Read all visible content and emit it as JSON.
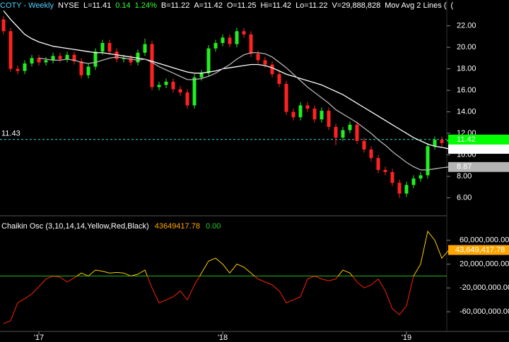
{
  "chart_data": {
    "type": "candlestick",
    "header": [
      "COTY - Weekly",
      "NYSE",
      "L=11.41",
      "0.14",
      "1.24%",
      "B=11.22",
      "A=11.42",
      "O=11.25",
      "Hi=11.42",
      "Lo=11.22",
      "V=29,888,828",
      "Mov Avg 2 Lines (",
      "("
    ],
    "header_colors": [
      "#4fd0ff",
      "#ffffff",
      "#ffffff",
      "#33ff33",
      "#33ff33",
      "#ffffff",
      "#ffffff",
      "#ffffff",
      "#ffffff",
      "#ffffff",
      "#ffffff",
      "#ffffff",
      "#ffffff"
    ],
    "categories": [
      null,
      null,
      null,
      null,
      null,
      "'17",
      null,
      null,
      null,
      null,
      null,
      null,
      null,
      null,
      null,
      null,
      null,
      null,
      null,
      null,
      null,
      null,
      null,
      null,
      null,
      null,
      null,
      null,
      null,
      null,
      null,
      "'18",
      null,
      null,
      null,
      null,
      null,
      null,
      null,
      null,
      null,
      null,
      null,
      null,
      null,
      null,
      null,
      null,
      null,
      null,
      null,
      null,
      null,
      null,
      null,
      null,
      null,
      "'19",
      null,
      null,
      null,
      null,
      null,
      null
    ],
    "open": [
      22.6,
      21.5,
      18.0,
      17.8,
      18.5,
      19.0,
      18.6,
      18.8,
      19.2,
      18.9,
      19.3,
      18.7,
      17.4,
      18.2,
      19.6,
      20.4,
      19.6,
      18.9,
      19.0,
      18.6,
      19.5,
      20.3,
      16.3,
      16.5,
      16.8,
      16.1,
      15.8,
      14.6,
      17.2,
      17.6,
      19.9,
      20.4,
      20.9,
      20.3,
      21.5,
      21.2,
      19.4,
      18.8,
      18.4,
      17.5,
      16.6,
      14.0,
      13.5,
      14.6,
      14.3,
      13.3,
      14.1,
      12.6,
      11.6,
      12.3,
      12.8,
      11.3,
      10.5,
      9.7,
      8.6,
      8.4,
      7.4,
      6.4,
      7.2,
      7.8,
      8.1,
      10.8,
      11.4,
      11.25
    ],
    "high": [
      22.9,
      21.8,
      18.3,
      18.8,
      19.3,
      19.3,
      19.1,
      19.5,
      19.5,
      19.6,
      19.6,
      19.0,
      18.5,
      19.9,
      20.7,
      20.7,
      19.9,
      19.3,
      19.3,
      19.8,
      20.8,
      20.6,
      16.8,
      17.1,
      17.1,
      16.4,
      16.1,
      17.5,
      17.9,
      20.2,
      20.7,
      21.2,
      21.2,
      21.8,
      21.8,
      21.5,
      19.7,
      19.1,
      18.7,
      17.8,
      16.9,
      14.3,
      14.9,
      14.9,
      14.6,
      14.4,
      14.4,
      12.9,
      12.6,
      13.1,
      13.1,
      11.6,
      10.8,
      10.0,
      8.9,
      8.7,
      7.7,
      7.5,
      8.1,
      8.4,
      11.1,
      11.7,
      11.7,
      11.42
    ],
    "low": [
      21.2,
      17.7,
      17.5,
      17.5,
      18.2,
      18.3,
      18.3,
      18.5,
      18.6,
      18.6,
      18.4,
      17.1,
      17.1,
      17.9,
      19.3,
      19.3,
      18.6,
      18.6,
      18.3,
      18.3,
      19.2,
      16.0,
      16.0,
      16.2,
      15.8,
      15.5,
      14.3,
      14.3,
      16.9,
      17.3,
      19.6,
      20.1,
      20.0,
      20.0,
      20.9,
      19.1,
      18.5,
      18.1,
      17.2,
      16.3,
      13.7,
      13.2,
      13.2,
      14.0,
      13.0,
      13.0,
      12.3,
      10.9,
      11.3,
      12.0,
      11.0,
      10.2,
      9.4,
      8.3,
      8.1,
      7.1,
      6.0,
      6.1,
      6.9,
      7.5,
      7.8,
      10.5,
      10.8,
      11.22
    ],
    "close": [
      21.5,
      18.0,
      17.8,
      18.5,
      19.0,
      18.6,
      18.8,
      19.2,
      18.9,
      19.3,
      18.7,
      17.4,
      18.2,
      19.6,
      20.4,
      19.6,
      18.9,
      19.0,
      18.6,
      19.5,
      20.3,
      16.3,
      16.5,
      16.8,
      16.1,
      15.8,
      14.6,
      17.2,
      17.6,
      19.9,
      20.4,
      20.9,
      20.3,
      21.5,
      21.2,
      19.4,
      18.8,
      18.4,
      17.5,
      16.6,
      14.0,
      13.5,
      14.6,
      14.3,
      13.3,
      14.1,
      12.6,
      11.6,
      12.3,
      12.8,
      11.3,
      10.5,
      9.7,
      8.6,
      8.4,
      7.4,
      6.4,
      7.2,
      7.8,
      8.1,
      10.8,
      11.4,
      11.1,
      11.41
    ],
    "up_color": "#22ee22",
    "down_color": "#ff2222",
    "series": [
      {
        "color": "#ffffff",
        "values": [
          23.4,
          22.6,
          21.9,
          21.2,
          20.8,
          20.5,
          20.3,
          20.1,
          20.0,
          19.9,
          19.8,
          19.7,
          19.6,
          19.5,
          19.5,
          19.4,
          19.3,
          19.2,
          19.1,
          19.0,
          18.9,
          18.7,
          18.5,
          18.3,
          18.1,
          17.9,
          17.7,
          17.6,
          17.6,
          17.7,
          17.8,
          18.0,
          18.1,
          18.2,
          18.3,
          18.4,
          18.4,
          18.3,
          18.1,
          17.8,
          17.5,
          17.3,
          17.1,
          16.9,
          16.7,
          16.5,
          16.2,
          15.9,
          15.6,
          15.2,
          14.8,
          14.4,
          14.0,
          13.6,
          13.2,
          12.8,
          12.4,
          12.0,
          11.6,
          11.3,
          11.0,
          10.8,
          10.7,
          10.56
        ]
      },
      {
        "color": "#b4b4b4",
        "values": [
          null,
          null,
          null,
          null,
          null,
          19.0,
          18.9,
          18.8,
          18.8,
          18.9,
          18.8,
          18.6,
          18.5,
          18.6,
          18.8,
          19.0,
          19.1,
          19.0,
          18.9,
          18.8,
          18.9,
          18.6,
          18.2,
          17.9,
          17.6,
          17.3,
          17.0,
          17.0,
          17.1,
          17.3,
          17.6,
          18.0,
          18.4,
          18.9,
          19.3,
          19.5,
          19.5,
          19.4,
          19.1,
          18.6,
          18.1,
          17.5,
          16.9,
          16.3,
          15.8,
          15.3,
          14.8,
          14.2,
          13.8,
          13.4,
          13.0,
          12.5,
          12.0,
          11.4,
          10.9,
          10.3,
          9.8,
          9.3,
          8.9,
          8.6,
          8.6,
          8.7,
          8.8,
          8.87
        ]
      }
    ],
    "ask_price": 11.42,
    "ask_color": "#00ff00",
    "cursor_price": 11.43,
    "cursor_color": "#33dddd",
    "ylim": [
      4.4,
      24.4
    ],
    "yticks": [
      {
        "value": 6,
        "label": "6.00"
      },
      {
        "value": 8,
        "label": "8.00"
      },
      {
        "value": 10,
        "label": "10.00"
      },
      {
        "value": 12,
        "label": "12.00"
      },
      {
        "value": 14,
        "label": "14.00"
      },
      {
        "value": 16,
        "label": "16.00"
      },
      {
        "value": 18,
        "label": "18.00"
      },
      {
        "value": 20,
        "label": "20.00"
      },
      {
        "value": 22,
        "label": "22.00"
      }
    ],
    "indicator": {
      "title": "Chaikin Osc (3,10,14,14,Yellow,Red,Black)",
      "signal": {
        "value": 0,
        "label": "0.00"
      },
      "signal_color": "#22bb22",
      "color_above": "#ffcc00",
      "color_below": "#ff2200",
      "label_bg": "#ffa500",
      "values": [
        -80000000,
        -75000000,
        -45000000,
        -38000000,
        -30000000,
        -18000000,
        -5000000,
        0,
        -2000000,
        -10000000,
        -3000000,
        5000000,
        0,
        10000000,
        8000000,
        5000000,
        6000000,
        5000000,
        0,
        3000000,
        10000000,
        -20000000,
        -45000000,
        -40000000,
        -35000000,
        -25000000,
        -40000000,
        -15000000,
        5000000,
        25000000,
        30000000,
        20000000,
        5000000,
        20000000,
        15000000,
        5000000,
        -5000000,
        -10000000,
        -15000000,
        -25000000,
        -45000000,
        -40000000,
        -35000000,
        -5000000,
        0,
        -5000000,
        -8000000,
        -5000000,
        10000000,
        5000000,
        -10000000,
        -20000000,
        -15000000,
        -5000000,
        -25000000,
        -55000000,
        -65000000,
        -50000000,
        0,
        20000000,
        75000000,
        60000000,
        30000000,
        43649417.78
      ],
      "value_labels": [
        null,
        null,
        null,
        null,
        null,
        null,
        null,
        null,
        null,
        null,
        null,
        null,
        null,
        null,
        null,
        null,
        null,
        null,
        null,
        null,
        null,
        null,
        null,
        null,
        null,
        null,
        null,
        null,
        null,
        null,
        null,
        null,
        null,
        null,
        null,
        null,
        null,
        null,
        null,
        null,
        null,
        null,
        null,
        null,
        null,
        null,
        null,
        null,
        null,
        null,
        null,
        null,
        null,
        null,
        null,
        null,
        null,
        null,
        null,
        null,
        null,
        null,
        null,
        "43,649,417.78"
      ],
      "ylim": [
        -93000000,
        94000000
      ],
      "yticks": [
        {
          "value": -60000000,
          "label": "-60,000,000.00"
        },
        {
          "value": -20000000,
          "label": "-20,000,000.00"
        },
        {
          "value": 20000000,
          "label": "20,000,000.00"
        },
        {
          "value": 60000000,
          "label": "60,000,000.00"
        }
      ]
    }
  }
}
